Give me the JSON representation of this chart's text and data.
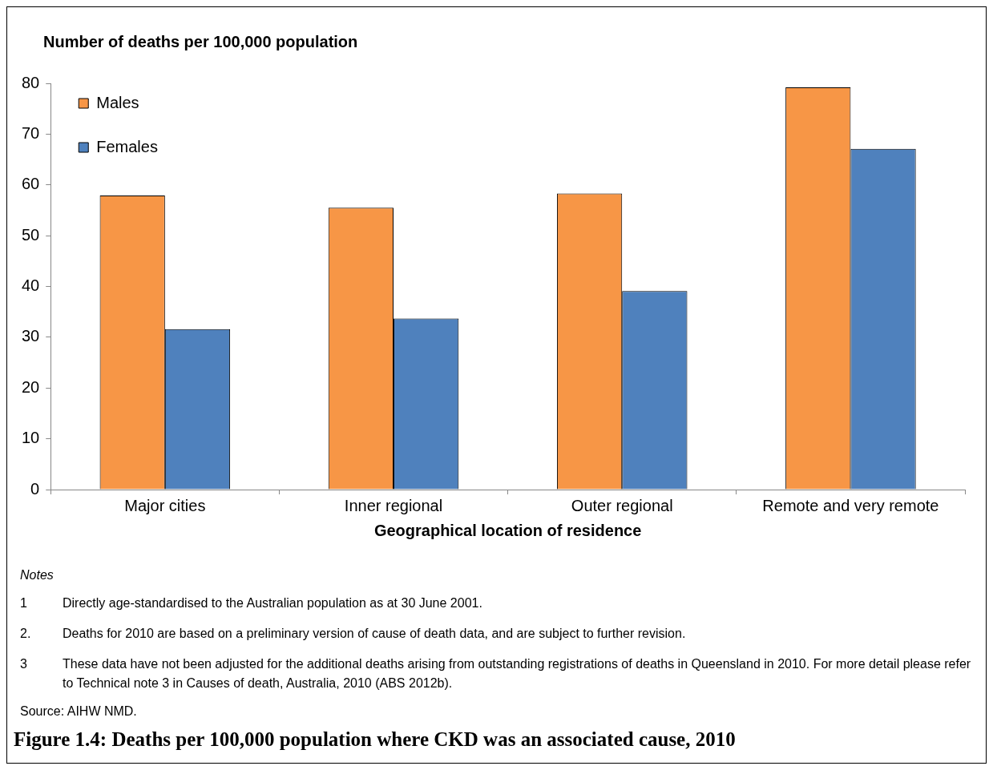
{
  "chart_data": {
    "type": "bar",
    "title": "Figure 1.4: Deaths per 100,000 population where CKD was an associated cause, 2010",
    "ylabel": "Number of deaths per 100,000 population",
    "xlabel": "Geographical location of residence",
    "categories": [
      "Major cities",
      "Inner regional",
      "Outer regional",
      "Remote and very remote"
    ],
    "series": [
      {
        "name": "Males",
        "color": "#f79646",
        "values": [
          57.9,
          55.5,
          58.3,
          79.2
        ]
      },
      {
        "name": "Females",
        "color": "#4f81bd",
        "values": [
          31.6,
          33.7,
          39.1,
          67.1
        ]
      }
    ],
    "ylim": [
      0,
      80
    ],
    "yticks": [
      0,
      10,
      20,
      30,
      40,
      50,
      60,
      70,
      80
    ],
    "grid": false,
    "legend": "top left",
    "annotations": [
      "Notes",
      "1\tDirectly age-standardised to the Australian population as at 30 June 2001.",
      "2.\tDeaths for 2010 are based on a preliminary version of cause of death data, and are subject to further revision.",
      "3\tThese data have not been adjusted for the additional deaths arising from outstanding registrations of deaths in Queensland in 2010. For more detail please refer to Technical note 3 in Causes of death, Australia, 2010 (ABS 2012b).",
      "Source: AIHW NMD."
    ]
  }
}
